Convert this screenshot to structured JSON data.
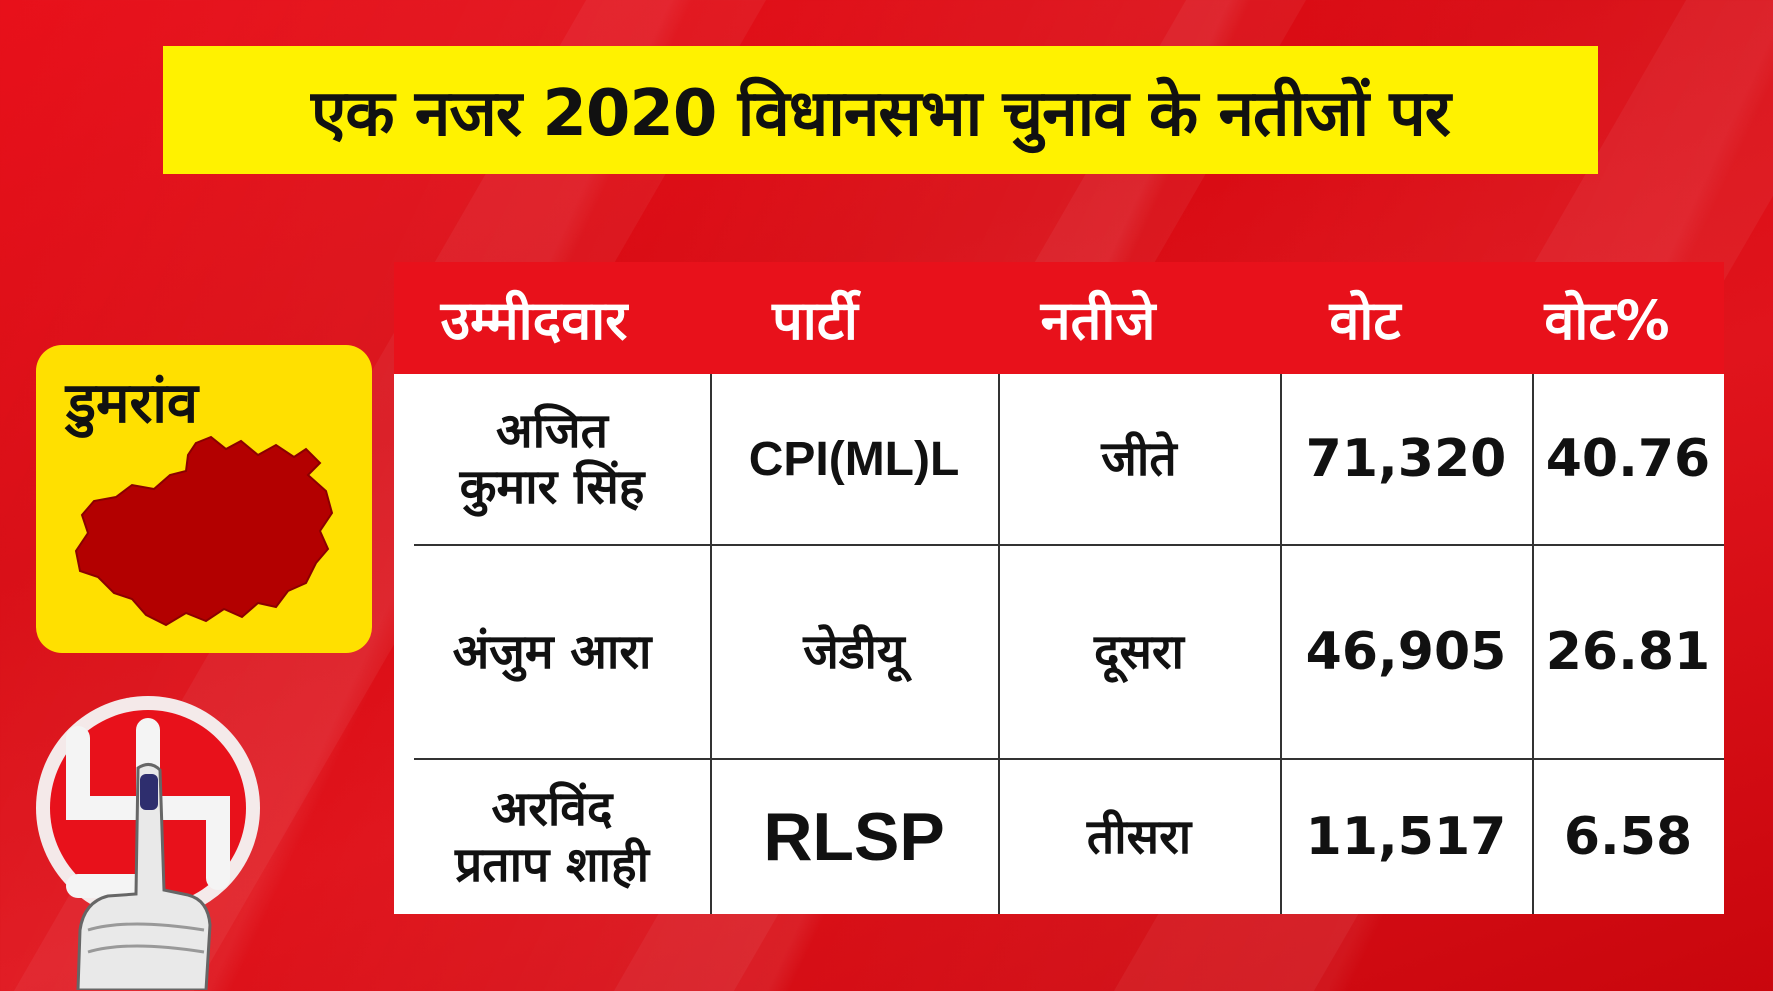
{
  "headline": "एक नजर 2020 विधानसभा चुनाव के नतीजों पर",
  "constituency": {
    "name": "डुमरांव"
  },
  "table": {
    "headers": [
      "उम्मीदवार",
      "पार्टी",
      "नतीजे",
      "वोट",
      "वोट%"
    ],
    "rows": [
      {
        "candidate": [
          "अजित",
          "कुमार सिंह"
        ],
        "party": "CPI(ML)L",
        "result": "जीते",
        "votes": "71,320",
        "vote_pct": "40.76"
      },
      {
        "candidate": [
          "अंजुम आरा"
        ],
        "party": "जेडीयू",
        "result": "दूसरा",
        "votes": "46,905",
        "vote_pct": "26.81"
      },
      {
        "candidate": [
          "अरविंद",
          "प्रताप शाही"
        ],
        "party": "RLSP",
        "result": "तीसरा",
        "votes": "11,517",
        "vote_pct": "6.58"
      }
    ]
  },
  "colors": {
    "background": "#e0141c",
    "headline_bg": "#fff200",
    "badge_bg": "#ffe000",
    "map_fill": "#b30000",
    "table_header_bg": "#e8111b"
  },
  "icons": [
    "bihar-map-icon",
    "election-commission-swastika-icon",
    "inked-finger-icon"
  ]
}
